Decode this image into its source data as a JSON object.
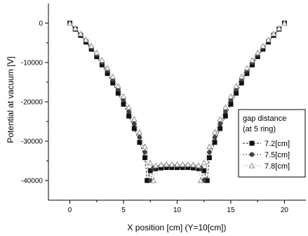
{
  "chart_data": {
    "type": "line",
    "title": "",
    "xlabel": "X position [cm] (Y=10[cm])",
    "ylabel": "Potential at vacuum [V]",
    "xlim": [
      -2,
      22
    ],
    "ylim": [
      -45000,
      5000
    ],
    "xticks": [
      0,
      5,
      10,
      15,
      20
    ],
    "yticks": [
      0,
      -10000,
      -20000,
      -30000,
      -40000
    ],
    "xtick_labels": [
      "0",
      "5",
      "10",
      "15",
      "20"
    ],
    "ytick_labels": [
      "0",
      "-10000",
      "-20000",
      "-30000",
      "-40000"
    ],
    "grid": false,
    "legend": {
      "position": "right",
      "title_lines": [
        "gap distance",
        "(at 5 ring)"
      ]
    },
    "series": [
      {
        "name": "7.2[cm]",
        "marker": "square",
        "color": "#111111",
        "points": [
          [
            0,
            0
          ],
          [
            0.5,
            -1500
          ],
          [
            1,
            -3100
          ],
          [
            1.5,
            -4800
          ],
          [
            2,
            -6600
          ],
          [
            2.5,
            -8500
          ],
          [
            3,
            -10600
          ],
          [
            3.5,
            -12800
          ],
          [
            4,
            -15200
          ],
          [
            4.5,
            -17800
          ],
          [
            5,
            -20600
          ],
          [
            5.5,
            -23600
          ],
          [
            6,
            -26800
          ],
          [
            6.5,
            -30300
          ],
          [
            7,
            -34200
          ],
          [
            7.2,
            -40000
          ],
          [
            7.5,
            -37500
          ],
          [
            8,
            -37000
          ],
          [
            8.5,
            -36800
          ],
          [
            9,
            -36700
          ],
          [
            9.5,
            -36700
          ],
          [
            10,
            -36700
          ],
          [
            10.5,
            -36700
          ],
          [
            11,
            -36700
          ],
          [
            11.5,
            -36800
          ],
          [
            12,
            -37000
          ],
          [
            12.5,
            -37500
          ],
          [
            12.8,
            -40000
          ],
          [
            13,
            -34200
          ],
          [
            13.5,
            -30300
          ],
          [
            14,
            -26800
          ],
          [
            14.5,
            -23600
          ],
          [
            15,
            -20600
          ],
          [
            15.5,
            -17800
          ],
          [
            16,
            -15200
          ],
          [
            16.5,
            -12800
          ],
          [
            17,
            -10600
          ],
          [
            17.5,
            -8500
          ],
          [
            18,
            -6600
          ],
          [
            18.5,
            -4800
          ],
          [
            19,
            -3100
          ],
          [
            19.5,
            -1500
          ],
          [
            20,
            0
          ]
        ]
      },
      {
        "name": "7.5[cm]",
        "marker": "circle",
        "color": "#444444",
        "points": [
          [
            0,
            0
          ],
          [
            0.5,
            -1400
          ],
          [
            1,
            -2900
          ],
          [
            1.5,
            -4500
          ],
          [
            2,
            -6200
          ],
          [
            2.5,
            -8000
          ],
          [
            3,
            -10000
          ],
          [
            3.5,
            -12100
          ],
          [
            4,
            -14400
          ],
          [
            4.5,
            -16900
          ],
          [
            5,
            -19600
          ],
          [
            5.5,
            -22500
          ],
          [
            6,
            -25600
          ],
          [
            6.5,
            -29000
          ],
          [
            7,
            -32800
          ],
          [
            7.5,
            -40000
          ],
          [
            7.8,
            -36800
          ],
          [
            8,
            -36500
          ],
          [
            8.5,
            -36300
          ],
          [
            9,
            -36200
          ],
          [
            9.5,
            -36200
          ],
          [
            10,
            -36200
          ],
          [
            10.5,
            -36200
          ],
          [
            11,
            -36200
          ],
          [
            11.5,
            -36300
          ],
          [
            12,
            -36500
          ],
          [
            12.2,
            -36800
          ],
          [
            12.5,
            -40000
          ],
          [
            13,
            -32800
          ],
          [
            13.5,
            -29000
          ],
          [
            14,
            -25600
          ],
          [
            14.5,
            -22500
          ],
          [
            15,
            -19600
          ],
          [
            15.5,
            -16900
          ],
          [
            16,
            -14400
          ],
          [
            16.5,
            -12100
          ],
          [
            17,
            -10000
          ],
          [
            17.5,
            -8000
          ],
          [
            18,
            -6200
          ],
          [
            18.5,
            -4500
          ],
          [
            19,
            -2900
          ],
          [
            19.5,
            -1400
          ],
          [
            20,
            0
          ]
        ]
      },
      {
        "name": "7.8[cm]",
        "marker": "triangle",
        "color": "#888888",
        "points": [
          [
            0,
            0
          ],
          [
            0.5,
            -1300
          ],
          [
            1,
            -2700
          ],
          [
            1.5,
            -4200
          ],
          [
            2,
            -5800
          ],
          [
            2.5,
            -7500
          ],
          [
            3,
            -9400
          ],
          [
            3.5,
            -11400
          ],
          [
            4,
            -13600
          ],
          [
            4.5,
            -16000
          ],
          [
            5,
            -18600
          ],
          [
            5.5,
            -21400
          ],
          [
            6,
            -24400
          ],
          [
            6.5,
            -27700
          ],
          [
            7,
            -31400
          ],
          [
            7.5,
            -35500
          ],
          [
            7.8,
            -40000
          ],
          [
            8,
            -36200
          ],
          [
            8.5,
            -36000
          ],
          [
            9,
            -35900
          ],
          [
            9.5,
            -35900
          ],
          [
            10,
            -35900
          ],
          [
            10.5,
            -35900
          ],
          [
            11,
            -35900
          ],
          [
            11.5,
            -36000
          ],
          [
            12,
            -36200
          ],
          [
            12.2,
            -40000
          ],
          [
            12.5,
            -35500
          ],
          [
            13,
            -31400
          ],
          [
            13.5,
            -27700
          ],
          [
            14,
            -24400
          ],
          [
            14.5,
            -21400
          ],
          [
            15,
            -18600
          ],
          [
            15.5,
            -16000
          ],
          [
            16,
            -13600
          ],
          [
            16.5,
            -11400
          ],
          [
            17,
            -9400
          ],
          [
            17.5,
            -7500
          ],
          [
            18,
            -5800
          ],
          [
            18.5,
            -4200
          ],
          [
            19,
            -2700
          ],
          [
            19.5,
            -1300
          ],
          [
            20,
            0
          ]
        ]
      }
    ]
  }
}
